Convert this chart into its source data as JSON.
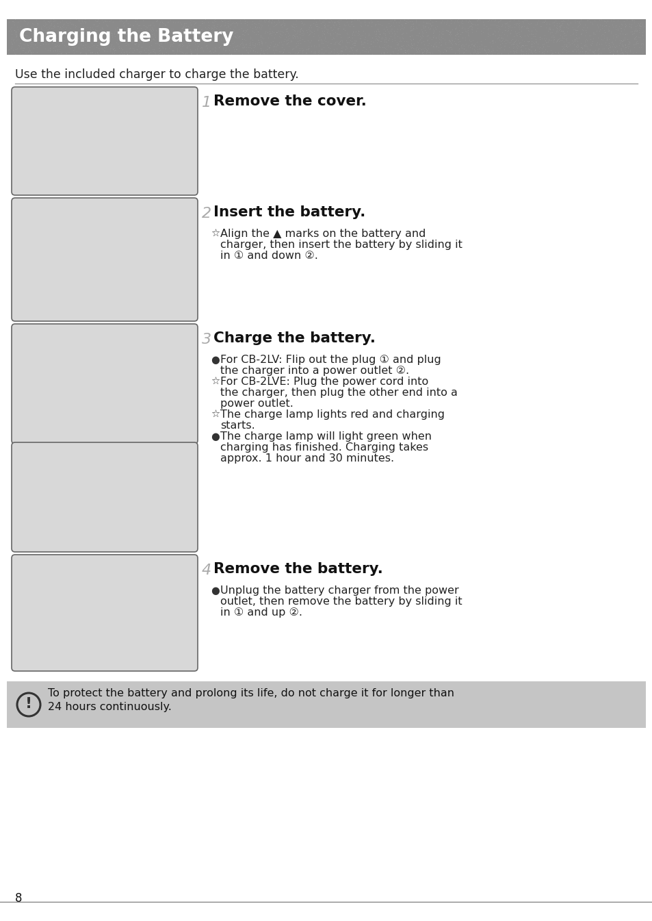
{
  "page_bg": "#ffffff",
  "title_bg": "#8a8a8a",
  "title_text": "Charging the Battery",
  "title_color": "#ffffff",
  "title_fontsize": 19,
  "subtitle": "Use the included charger to charge the battery.",
  "subtitle_fontsize": 12.5,
  "warning_bg": "#c5c5c5",
  "warning_text_line1": "To protect the battery and prolong its life, do not charge it for longer than",
  "warning_text_line2": "24 hours continuously.",
  "warning_fontsize": 11.5,
  "page_number": "8",
  "steps": [
    {
      "number": "1",
      "heading": "Remove the cover.",
      "bullets": []
    },
    {
      "number": "2",
      "heading": "Insert the battery.",
      "bullets": [
        [
          "☆",
          "Align the ▲ marks on the battery and"
        ],
        [
          "",
          "charger, then insert the battery by sliding it"
        ],
        [
          "",
          "in ① and down ②."
        ]
      ]
    },
    {
      "number": "3",
      "heading": "Charge the battery.",
      "bullets": [
        [
          "●",
          "For CB-2LV: Flip out the plug ① and plug"
        ],
        [
          "",
          "the charger into a power outlet ②."
        ],
        [
          "☆",
          "For CB-2LVE: Plug the power cord into"
        ],
        [
          "",
          "the charger, then plug the other end into a"
        ],
        [
          "",
          "power outlet."
        ],
        [
          "☆",
          "The charge lamp lights red and charging"
        ],
        [
          "",
          "starts."
        ],
        [
          "●",
          "The charge lamp will light green when"
        ],
        [
          "",
          "charging has finished. Charging takes"
        ],
        [
          "",
          "approx. 1 hour and 30 minutes."
        ]
      ]
    },
    {
      "number": "4",
      "heading": "Remove the battery.",
      "bullets": [
        [
          "●",
          "Unplug the battery charger from the power"
        ],
        [
          "",
          "outlet, then remove the battery by sliding it"
        ],
        [
          "",
          "in ① and up ②."
        ]
      ]
    }
  ],
  "step_heading_fontsize": 15.5,
  "step_number_fontsize": 16,
  "bullet_fontsize": 11.5,
  "img_fill": "#d8d8d8",
  "img_border": "#666666",
  "line_color": "#aaaaaa",
  "sep_line_color": "#999999"
}
